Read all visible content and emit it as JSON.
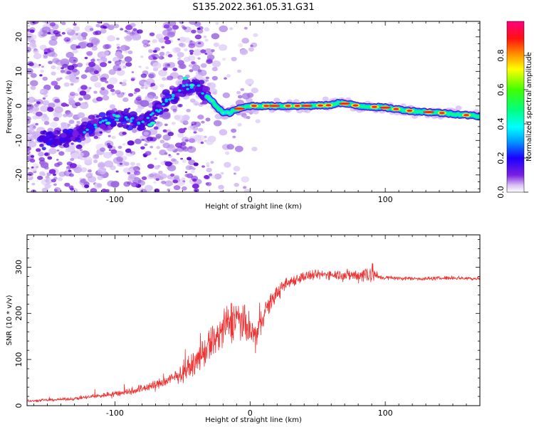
{
  "title": "S135.2022.361.05.31.G31",
  "chart_data": [
    {
      "type": "heatmap",
      "xlabel": "Height of straight line (km)",
      "ylabel": "Frequency (Hz)",
      "xlim": [
        -165,
        170
      ],
      "ylim": [
        -25,
        24.5
      ],
      "xticks": [
        -100,
        0,
        100
      ],
      "yticks": [
        -20,
        -10,
        0,
        10,
        20
      ],
      "colorbar": {
        "label": "Normalized spectral amplitude",
        "range": [
          0,
          1
        ],
        "ticks": [
          0.0,
          0.2,
          0.4,
          0.6,
          0.8
        ],
        "colors": [
          "#ffffff",
          "#c9a6f2",
          "#7b1fe0",
          "#4a00d9",
          "#0000ff",
          "#00b3ff",
          "#00ffff",
          "#00ff80",
          "#00ff00",
          "#ffff00",
          "#ff8000",
          "#ff0000",
          "#ff0080"
        ]
      },
      "ridge": {
        "x": [
          -165,
          -140,
          -120,
          -100,
          -80,
          -70,
          -60,
          -50,
          -40,
          -35,
          -30,
          -25,
          -20,
          -15,
          -10,
          0,
          20,
          40,
          60,
          65,
          80,
          100,
          120,
          140,
          170
        ],
        "y": [
          -9,
          -10,
          -7,
          -3,
          -5,
          -2,
          2,
          5,
          6,
          4,
          2,
          0,
          -2,
          -2,
          -1,
          0,
          0,
          0,
          0.2,
          1,
          0,
          -0.5,
          -1.5,
          -2,
          -3
        ]
      }
    },
    {
      "type": "line",
      "xlabel": "Height of straight line (km)",
      "ylabel": "SNR (10 * v/v)",
      "xlim": [
        -165,
        170
      ],
      "ylim": [
        0,
        370
      ],
      "xticks": [
        -100,
        0,
        100
      ],
      "yticks": [
        0,
        100,
        200,
        300
      ],
      "color": "#ee3333",
      "series": [
        {
          "name": "SNR",
          "x": [
            -165,
            -150,
            -130,
            -110,
            -90,
            -70,
            -60,
            -50,
            -40,
            -30,
            -20,
            -10,
            0,
            5,
            10,
            20,
            30,
            40,
            50,
            60,
            70,
            80,
            90,
            95,
            110,
            130,
            150,
            170
          ],
          "values": [
            10,
            12,
            15,
            22,
            30,
            45,
            55,
            70,
            95,
            130,
            165,
            195,
            160,
            150,
            200,
            245,
            270,
            280,
            283,
            285,
            283,
            282,
            290,
            278,
            276,
            275,
            277,
            275
          ],
          "noise": [
            3,
            4,
            5,
            8,
            12,
            15,
            20,
            25,
            35,
            55,
            70,
            60,
            55,
            50,
            35,
            25,
            18,
            18,
            15,
            15,
            18,
            20,
            40,
            8,
            6,
            6,
            6,
            6
          ]
        }
      ]
    }
  ]
}
